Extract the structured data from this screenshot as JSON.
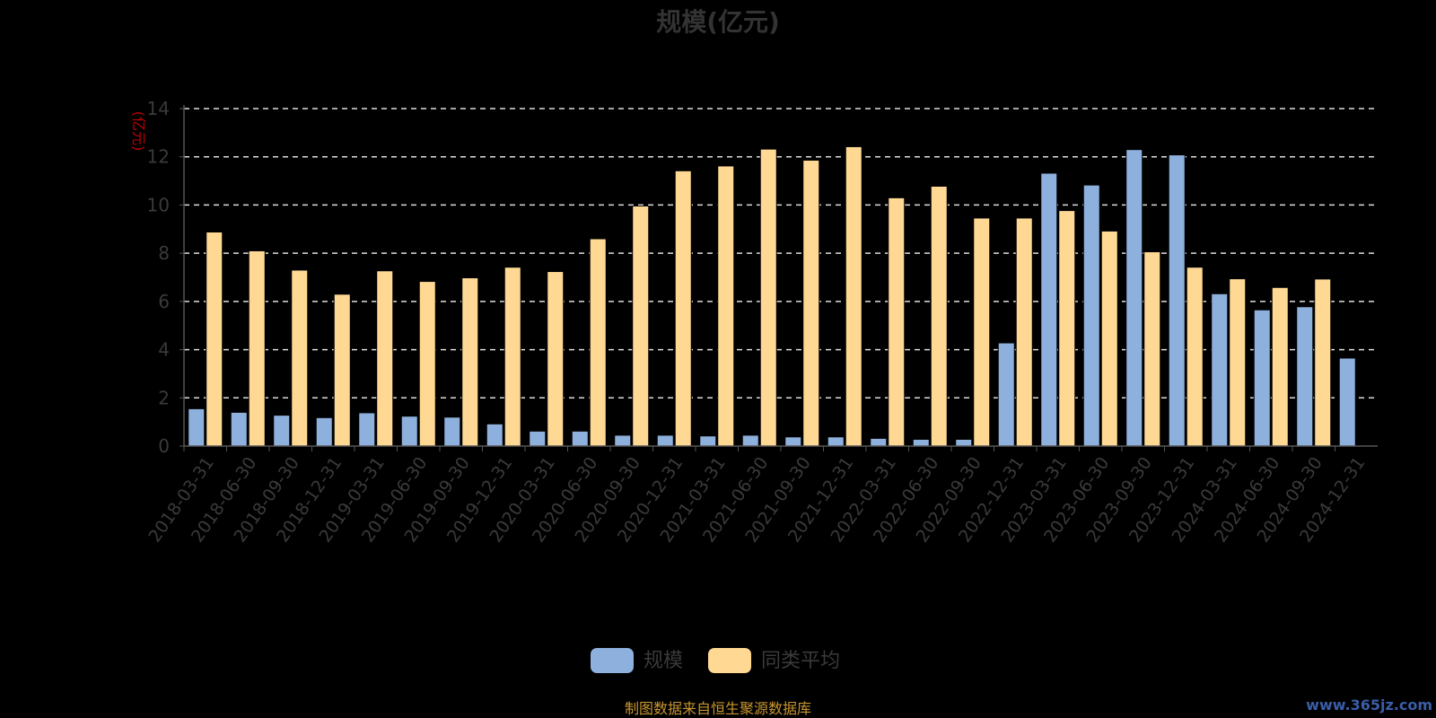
{
  "chart_data": {
    "type": "bar",
    "title": "规模(亿元)",
    "y_unit": "(亿元)",
    "ylim": [
      0,
      14
    ],
    "yticks": [
      0,
      2,
      4,
      6,
      8,
      10,
      12,
      14
    ],
    "grid": true,
    "legend_position": "bottom-center",
    "categories": [
      "2018-03-31",
      "2018-06-30",
      "2018-09-30",
      "2018-12-31",
      "2019-03-31",
      "2019-06-30",
      "2019-09-30",
      "2019-12-31",
      "2020-03-31",
      "2020-06-30",
      "2020-09-30",
      "2020-12-31",
      "2021-03-31",
      "2021-06-30",
      "2021-09-30",
      "2021-12-31",
      "2022-03-31",
      "2022-06-30",
      "2022-09-30",
      "2022-12-31",
      "2023-03-31",
      "2023-06-30",
      "2023-09-30",
      "2023-12-31",
      "2024-03-31",
      "2024-06-30",
      "2024-09-30",
      "2024-12-31"
    ],
    "series": [
      {
        "name": "规模",
        "color": "#8eb0dd",
        "values": [
          1.55,
          1.4,
          1.28,
          1.18,
          1.38,
          1.24,
          1.2,
          0.92,
          0.62,
          0.62,
          0.45,
          0.45,
          0.42,
          0.45,
          0.38,
          0.38,
          0.32,
          0.28,
          0.28,
          4.28,
          11.32,
          10.83,
          12.3,
          12.08,
          6.32,
          5.65,
          5.78,
          3.65
        ]
      },
      {
        "name": "同类平均",
        "color": "#ffd994",
        "values": [
          8.88,
          8.1,
          7.3,
          6.3,
          7.27,
          6.83,
          6.98,
          7.42,
          7.24,
          8.6,
          9.96,
          11.42,
          11.62,
          12.32,
          11.86,
          12.42,
          10.3,
          10.78,
          9.46,
          9.46,
          9.77,
          8.92,
          8.06,
          7.42,
          6.94,
          6.58,
          6.93,
          null
        ]
      }
    ]
  },
  "source_text": "制图数据来自恒生聚源数据库",
  "watermark_text": "www.365jz.com"
}
